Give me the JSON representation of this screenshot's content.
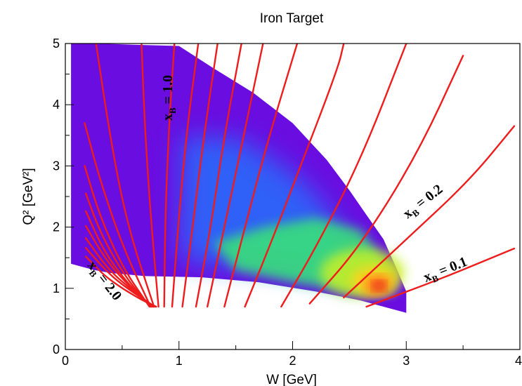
{
  "chart_data": {
    "type": "heatmap",
    "title": "Iron Target",
    "xlabel": "W [GeV]",
    "ylabel": "Q² [GeV²]",
    "xlim": [
      0,
      4
    ],
    "ylim": [
      0,
      5
    ],
    "x_ticks": [
      "0",
      "1",
      "2",
      "3",
      "4"
    ],
    "y_ticks": [
      "0",
      "1",
      "2",
      "3",
      "4",
      "5"
    ],
    "grid": false,
    "colormap": [
      "#6a0de0",
      "#3a2cff",
      "#1a7bff",
      "#2ad3e6",
      "#37e07a",
      "#c8f025",
      "#ffd21a",
      "#ff6a1a",
      "#e0201c"
    ],
    "line_color": "#ee1c1c",
    "density_region": {
      "boundary": [
        [
          0.05,
          5.0
        ],
        [
          0.3,
          5.0
        ],
        [
          0.6,
          4.98
        ],
        [
          1.0,
          4.96
        ],
        [
          1.3,
          4.6
        ],
        [
          1.65,
          4.2
        ],
        [
          2.0,
          3.7
        ],
        [
          2.3,
          3.1
        ],
        [
          2.5,
          2.6
        ],
        [
          2.65,
          2.2
        ],
        [
          2.8,
          1.8
        ],
        [
          2.92,
          1.3
        ],
        [
          3.0,
          0.95
        ],
        [
          3.0,
          0.6
        ],
        [
          2.6,
          0.8
        ],
        [
          2.2,
          0.95
        ],
        [
          1.7,
          1.1
        ],
        [
          1.2,
          1.18
        ],
        [
          0.7,
          1.2
        ],
        [
          0.4,
          1.25
        ],
        [
          0.25,
          1.3
        ],
        [
          0.05,
          1.4
        ]
      ],
      "core": [
        [
          1.3,
          1.75
        ],
        [
          1.75,
          2.0
        ],
        [
          2.2,
          2.15
        ],
        [
          2.6,
          1.95
        ],
        [
          2.85,
          1.35
        ],
        [
          2.9,
          0.95
        ],
        [
          2.5,
          0.95
        ],
        [
          2.0,
          1.1
        ],
        [
          1.5,
          1.3
        ]
      ],
      "hotspot": {
        "W": 2.75,
        "Q2": 1.05
      }
    },
    "series": [
      {
        "xB": 2.0,
        "points": [
          [
            0.8,
            0.7
          ],
          [
            0.68,
            0.8
          ],
          [
            0.5,
            1.0
          ],
          [
            0.35,
            1.2
          ],
          [
            0.27,
            1.35
          ],
          [
            0.18,
            1.52
          ]
        ]
      },
      {
        "xB": 1.9,
        "points": [
          [
            0.79,
            0.7
          ],
          [
            0.62,
            0.9
          ],
          [
            0.4,
            1.2
          ],
          [
            0.18,
            1.66
          ]
        ]
      },
      {
        "xB": 1.8,
        "points": [
          [
            0.78,
            0.7
          ],
          [
            0.6,
            0.95
          ],
          [
            0.38,
            1.3
          ],
          [
            0.18,
            1.82
          ]
        ]
      },
      {
        "xB": 1.7,
        "points": [
          [
            0.77,
            0.7
          ],
          [
            0.58,
            1.0
          ],
          [
            0.36,
            1.45
          ],
          [
            0.18,
            2.02
          ]
        ]
      },
      {
        "xB": 1.6,
        "points": [
          [
            0.76,
            0.7
          ],
          [
            0.56,
            1.05
          ],
          [
            0.34,
            1.6
          ],
          [
            0.18,
            2.26
          ]
        ]
      },
      {
        "xB": 1.5,
        "points": [
          [
            0.75,
            0.7
          ],
          [
            0.54,
            1.15
          ],
          [
            0.32,
            1.85
          ],
          [
            0.18,
            2.55
          ]
        ]
      },
      {
        "xB": 1.4,
        "points": [
          [
            0.74,
            0.7
          ],
          [
            0.5,
            1.35
          ],
          [
            0.3,
            2.2
          ],
          [
            0.17,
            3.0
          ]
        ]
      },
      {
        "xB": 1.3,
        "points": [
          [
            0.75,
            0.7
          ],
          [
            0.5,
            1.7
          ],
          [
            0.3,
            2.8
          ],
          [
            0.17,
            3.7
          ]
        ]
      },
      {
        "xB": 1.2,
        "points": [
          [
            0.78,
            0.7
          ],
          [
            0.55,
            2.0
          ],
          [
            0.4,
            3.4
          ],
          [
            0.27,
            5.0
          ]
        ]
      },
      {
        "xB": 1.1,
        "points": [
          [
            0.82,
            0.7
          ],
          [
            0.75,
            2.2
          ],
          [
            0.7,
            3.6
          ],
          [
            0.67,
            5.0
          ]
        ]
      },
      {
        "xB": 1.0,
        "points": [
          [
            0.87,
            0.7
          ],
          [
            0.88,
            2.2
          ],
          [
            0.91,
            3.6
          ],
          [
            0.96,
            5.0
          ]
        ]
      },
      {
        "xB": 0.9,
        "points": [
          [
            0.94,
            0.7
          ],
          [
            1.0,
            2.2
          ],
          [
            1.07,
            3.6
          ],
          [
            1.17,
            5.0
          ]
        ]
      },
      {
        "xB": 0.8,
        "points": [
          [
            1.03,
            0.7
          ],
          [
            1.12,
            2.0
          ],
          [
            1.22,
            3.5
          ],
          [
            1.34,
            5.0
          ]
        ]
      },
      {
        "xB": 0.7,
        "points": [
          [
            1.15,
            0.7
          ],
          [
            1.28,
            2.0
          ],
          [
            1.4,
            3.5
          ],
          [
            1.55,
            5.0
          ]
        ]
      },
      {
        "xB": 0.6,
        "points": [
          [
            1.25,
            0.7
          ],
          [
            1.4,
            2.0
          ],
          [
            1.57,
            3.5
          ],
          [
            1.74,
            5.0
          ]
        ]
      },
      {
        "xB": 0.5,
        "points": [
          [
            1.4,
            0.7
          ],
          [
            1.58,
            2.0
          ],
          [
            1.78,
            3.4
          ],
          [
            2.04,
            5.0
          ]
        ]
      },
      {
        "xB": 0.4,
        "points": [
          [
            1.58,
            0.7
          ],
          [
            1.8,
            1.7
          ],
          [
            2.05,
            2.9
          ],
          [
            2.4,
            4.6
          ],
          [
            2.45,
            5.0
          ]
        ]
      },
      {
        "xB": 0.3,
        "points": [
          [
            1.9,
            0.7
          ],
          [
            2.2,
            1.65
          ],
          [
            2.6,
            3.1
          ],
          [
            3.0,
            5.0
          ]
        ]
      },
      {
        "xB": 0.25,
        "points": [
          [
            2.15,
            0.75
          ],
          [
            2.6,
            1.7
          ],
          [
            3.1,
            3.2
          ],
          [
            3.5,
            4.8
          ]
        ]
      },
      {
        "xB": 0.2,
        "points": [
          [
            2.45,
            0.85
          ],
          [
            3.0,
            1.8
          ],
          [
            3.55,
            2.75
          ],
          [
            3.95,
            3.65
          ]
        ]
      },
      {
        "xB": 0.1,
        "points": [
          [
            2.65,
            0.7
          ],
          [
            3.3,
            1.15
          ],
          [
            3.95,
            1.65
          ]
        ]
      }
    ],
    "annotations": [
      {
        "name": "xb-1-label",
        "main": "x",
        "sub": "B",
        "rest": " = 1.0"
      },
      {
        "name": "xb-2-label",
        "main": "x",
        "sub": "B",
        "rest": " = 2.0"
      },
      {
        "name": "xb-0-2-label",
        "main": "x",
        "sub": "B",
        "rest": " = 0.2"
      },
      {
        "name": "xb-0-1-label",
        "main": "x",
        "sub": "B",
        "rest": " = 0.1"
      }
    ]
  }
}
